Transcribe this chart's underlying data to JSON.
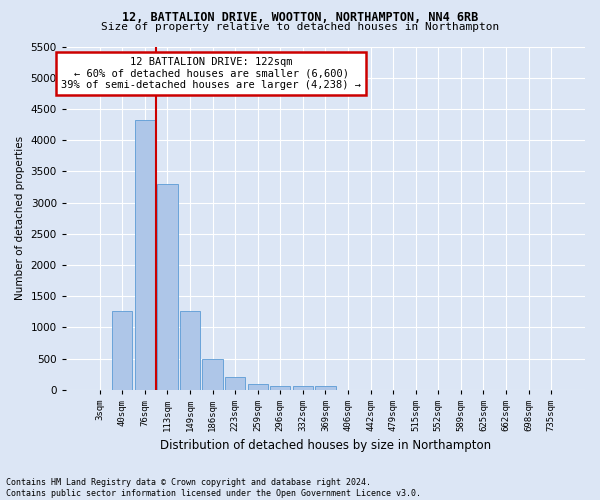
{
  "title1": "12, BATTALION DRIVE, WOOTTON, NORTHAMPTON, NN4 6RB",
  "title2": "Size of property relative to detached houses in Northampton",
  "xlabel": "Distribution of detached houses by size in Northampton",
  "ylabel": "Number of detached properties",
  "footnote": "Contains HM Land Registry data © Crown copyright and database right 2024.\nContains public sector information licensed under the Open Government Licence v3.0.",
  "bin_labels": [
    "3sqm",
    "40sqm",
    "76sqm",
    "113sqm",
    "149sqm",
    "186sqm",
    "223sqm",
    "259sqm",
    "296sqm",
    "332sqm",
    "369sqm",
    "406sqm",
    "442sqm",
    "479sqm",
    "515sqm",
    "552sqm",
    "589sqm",
    "625sqm",
    "662sqm",
    "698sqm",
    "735sqm"
  ],
  "bar_values": [
    0,
    1270,
    4330,
    3300,
    1270,
    490,
    210,
    90,
    70,
    55,
    55,
    0,
    0,
    0,
    0,
    0,
    0,
    0,
    0,
    0,
    0
  ],
  "bar_color": "#aec6e8",
  "bar_edge_color": "#5b9bd5",
  "annotation_text": "12 BATTALION DRIVE: 122sqm\n← 60% of detached houses are smaller (6,600)\n39% of semi-detached houses are larger (4,238) →",
  "annotation_box_color": "#ffffff",
  "annotation_box_edge_color": "#cc0000",
  "vline_color": "#cc0000",
  "ylim": [
    0,
    5500
  ],
  "yticks": [
    0,
    500,
    1000,
    1500,
    2000,
    2500,
    3000,
    3500,
    4000,
    4500,
    5000,
    5500
  ],
  "bg_color": "#dce6f5",
  "plot_bg_color": "#dce6f5",
  "grid_color": "#ffffff",
  "title1_fontsize": 8.5,
  "title2_fontsize": 8.0,
  "xlabel_fontsize": 8.5,
  "ylabel_fontsize": 7.5,
  "xtick_fontsize": 6.5,
  "ytick_fontsize": 7.5,
  "footnote_fontsize": 6.0,
  "annot_fontsize": 7.5
}
